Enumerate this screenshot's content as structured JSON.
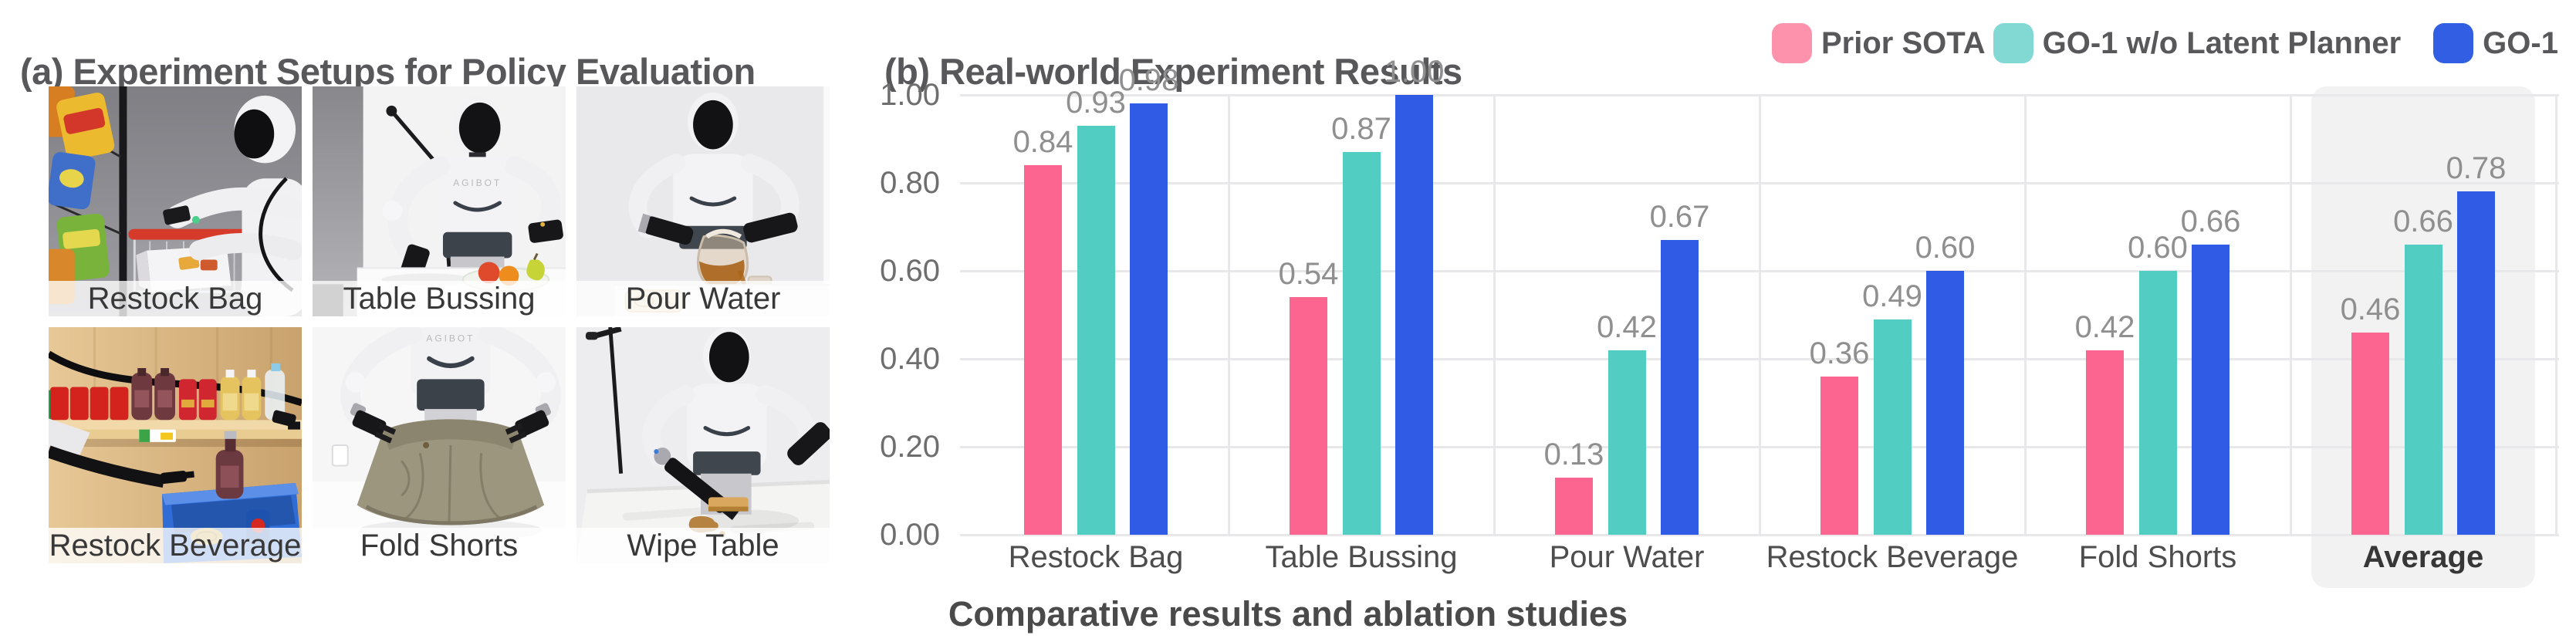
{
  "figure": {
    "panel_a_title": "(a) Experiment Setups for Policy Evaluation",
    "panel_b_title": "(b) Real-world Experiment Results",
    "caption": "Comparative results and ablation studies"
  },
  "setups": {
    "robot_brand": "AGIBOT",
    "items": [
      {
        "label": "Restock Bag"
      },
      {
        "label": "Table Bussing"
      },
      {
        "label": "Pour Water"
      },
      {
        "label": "Restock Beverage"
      },
      {
        "label": "Fold Shorts"
      },
      {
        "label": "Wipe Table"
      }
    ]
  },
  "legend": {
    "items": [
      {
        "label": "Prior SOTA",
        "color": "#FC92AC"
      },
      {
        "label": "GO-1 w/o Latent Planner",
        "color": "#82D8D3"
      },
      {
        "label": "GO-1",
        "color": "#315EE3"
      }
    ]
  },
  "chart_data": {
    "type": "bar",
    "title": "(b) Real-world Experiment Results",
    "xlabel": "",
    "ylabel": "",
    "categories": [
      "Restock Bag",
      "Table Bussing",
      "Pour Water",
      "Restock Beverage",
      "Fold Shorts",
      "Average"
    ],
    "series": [
      {
        "name": "Prior SOTA",
        "color": "#FB6590",
        "values": [
          0.84,
          0.54,
          0.13,
          0.36,
          0.42,
          0.46
        ]
      },
      {
        "name": "GO-1 w/o Latent Planner",
        "color": "#52CDC2",
        "values": [
          0.93,
          0.87,
          0.42,
          0.49,
          0.6,
          0.66
        ]
      },
      {
        "name": "GO-1",
        "color": "#305CE5",
        "values": [
          0.98,
          1.0,
          0.67,
          0.6,
          0.66,
          0.78
        ]
      }
    ],
    "ylim": [
      0,
      1.0
    ],
    "yticks": [
      0.0,
      0.2,
      0.4,
      0.6,
      0.8,
      1.0
    ],
    "ytick_labels": [
      "0.00",
      "0.20",
      "0.40",
      "0.60",
      "0.80",
      "1.00"
    ],
    "grid": "horizontal gridlines + vertical group separators",
    "legend_position": "top-right",
    "highlighted_category": "Average",
    "value_label_format": "0.00"
  }
}
